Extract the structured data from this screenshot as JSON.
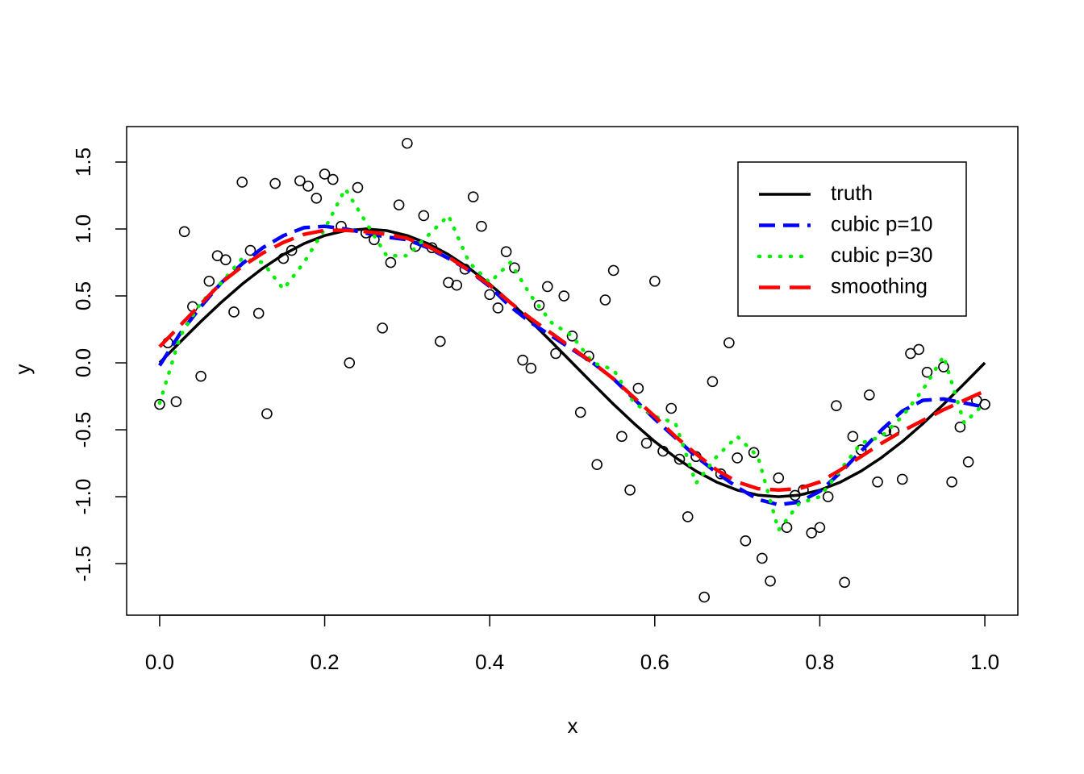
{
  "chart_data": {
    "type": "scatter",
    "xlabel": "x",
    "ylabel": "y",
    "xlim": [
      -0.04,
      1.04
    ],
    "ylim": [
      -1.885,
      1.765
    ],
    "xticks": [
      {
        "value": 0,
        "label": "0.0"
      },
      0.2,
      0.4,
      0.6,
      0.8,
      {
        "value": 1,
        "label": "1.0"
      }
    ],
    "yticks": [
      -1.5,
      {
        "value": -1,
        "label": "-1.0"
      },
      -0.5,
      {
        "value": 0,
        "label": "0.0"
      },
      0.5,
      {
        "value": 1,
        "label": "1.0"
      },
      1.5
    ],
    "legend": "topright",
    "points": {
      "color": "#000000",
      "x": [
        0,
        0.01,
        0.02,
        0.03,
        0.04,
        0.05,
        0.06,
        0.07,
        0.08,
        0.09,
        0.1,
        0.11,
        0.12,
        0.13,
        0.14,
        0.15,
        0.16,
        0.17,
        0.18,
        0.19,
        0.2,
        0.21,
        0.22,
        0.23,
        0.24,
        0.25,
        0.26,
        0.27,
        0.28,
        0.29,
        0.3,
        0.31,
        0.32,
        0.33,
        0.34,
        0.35,
        0.36,
        0.37,
        0.38,
        0.39,
        0.4,
        0.41,
        0.42,
        0.43,
        0.44,
        0.45,
        0.46,
        0.47,
        0.48,
        0.49,
        0.5,
        0.51,
        0.52,
        0.53,
        0.54,
        0.55,
        0.56,
        0.57,
        0.58,
        0.59,
        0.6,
        0.61,
        0.62,
        0.63,
        0.64,
        0.65,
        0.66,
        0.67,
        0.68,
        0.69,
        0.7,
        0.71,
        0.72,
        0.73,
        0.74,
        0.75,
        0.76,
        0.77,
        0.78,
        0.79,
        0.8,
        0.81,
        0.82,
        0.83,
        0.84,
        0.85,
        0.86,
        0.87,
        0.88,
        0.89,
        0.9,
        0.91,
        0.92,
        0.93,
        0.95,
        0.96,
        0.97,
        0.98,
        0.99,
        1.0
      ],
      "y": [
        -0.31,
        0.15,
        -0.29,
        0.98,
        0.42,
        -0.1,
        0.61,
        0.8,
        0.77,
        0.38,
        1.35,
        0.84,
        0.37,
        -0.38,
        1.34,
        0.78,
        0.84,
        1.36,
        1.32,
        1.23,
        1.41,
        1.37,
        1.02,
        0.0,
        1.31,
        0.97,
        0.92,
        0.26,
        0.75,
        1.18,
        1.64,
        0.87,
        1.1,
        0.86,
        0.16,
        0.6,
        0.58,
        0.7,
        1.24,
        1.02,
        0.51,
        0.41,
        0.83,
        0.71,
        0.02,
        -0.04,
        0.43,
        0.57,
        0.07,
        0.5,
        0.2,
        -0.37,
        0.05,
        -0.76,
        0.47,
        0.69,
        -0.55,
        -0.95,
        -0.19,
        -0.6,
        0.61,
        -0.66,
        -0.34,
        -0.72,
        -1.15,
        -0.7,
        -1.75,
        -0.14,
        -0.83,
        0.15,
        -0.71,
        -1.33,
        -0.67,
        -1.46,
        -1.63,
        -0.86,
        -1.23,
        -0.99,
        -0.95,
        -1.27,
        -1.23,
        -1.0,
        -0.32,
        -1.64,
        -0.55,
        -0.65,
        -0.24,
        -0.89,
        -0.51,
        -0.51,
        -0.87,
        0.07,
        0.1,
        -0.07,
        -0.03,
        -0.89,
        -0.48,
        -0.74,
        -0.28,
        -0.31
      ]
    },
    "lines": {
      "x": [
        0,
        0.025,
        0.05,
        0.075,
        0.1,
        0.125,
        0.15,
        0.175,
        0.2,
        0.225,
        0.25,
        0.275,
        0.3,
        0.325,
        0.35,
        0.375,
        0.4,
        0.425,
        0.45,
        0.475,
        0.5,
        0.525,
        0.55,
        0.575,
        0.6,
        0.625,
        0.65,
        0.675,
        0.7,
        0.725,
        0.75,
        0.775,
        0.8,
        0.825,
        0.85,
        0.875,
        0.9,
        0.925,
        0.95,
        0.975,
        1.0
      ],
      "series": [
        {
          "name": "truth",
          "color": "#000000",
          "dash": "solid",
          "values": [
            0,
            0.156,
            0.309,
            0.454,
            0.588,
            0.707,
            0.809,
            0.891,
            0.951,
            0.988,
            1,
            0.988,
            0.951,
            0.891,
            0.809,
            0.707,
            0.588,
            0.454,
            0.309,
            0.156,
            0,
            -0.156,
            -0.309,
            -0.454,
            -0.588,
            -0.707,
            -0.809,
            -0.891,
            -0.951,
            -0.988,
            -1,
            -0.988,
            -0.951,
            -0.891,
            -0.809,
            -0.707,
            -0.588,
            -0.454,
            -0.309,
            -0.156,
            0
          ]
        },
        {
          "name": "cubic p=10",
          "color": "#0000ff",
          "dash": "dashed",
          "values": [
            -0.02,
            0.22,
            0.42,
            0.6,
            0.74,
            0.86,
            0.95,
            1.01,
            1.02,
            1.0,
            0.97,
            0.94,
            0.92,
            0.86,
            0.78,
            0.69,
            0.57,
            0.42,
            0.3,
            0.2,
            0.1,
            0.0,
            -0.12,
            -0.27,
            -0.42,
            -0.56,
            -0.7,
            -0.82,
            -0.93,
            -1.02,
            -1.06,
            -1.04,
            -0.96,
            -0.82,
            -0.66,
            -0.5,
            -0.36,
            -0.28,
            -0.27,
            -0.3,
            -0.33
          ]
        },
        {
          "name": "cubic p=30",
          "color": "#00ee00",
          "dash": "dotted",
          "values": [
            -0.3,
            0.2,
            0.45,
            0.6,
            0.78,
            0.75,
            0.55,
            0.75,
            1.0,
            1.3,
            1.05,
            0.8,
            0.8,
            0.95,
            1.1,
            0.75,
            0.6,
            0.75,
            0.5,
            0.3,
            0.2,
            0.0,
            -0.05,
            -0.3,
            -0.4,
            -0.45,
            -0.9,
            -0.7,
            -0.55,
            -0.7,
            -1.25,
            -1.05,
            -1.0,
            -0.8,
            -0.6,
            -0.55,
            -0.4,
            -0.2,
            0.05,
            -0.45,
            -0.3
          ]
        },
        {
          "name": "smoothing",
          "color": "#ff0000",
          "dash": "longdash",
          "values": [
            0.12,
            0.28,
            0.44,
            0.6,
            0.72,
            0.82,
            0.9,
            0.96,
            0.99,
            0.99,
            0.98,
            0.96,
            0.93,
            0.87,
            0.79,
            0.69,
            0.58,
            0.45,
            0.33,
            0.22,
            0.11,
            0.0,
            -0.12,
            -0.26,
            -0.4,
            -0.55,
            -0.68,
            -0.8,
            -0.89,
            -0.94,
            -0.95,
            -0.94,
            -0.89,
            -0.8,
            -0.7,
            -0.6,
            -0.51,
            -0.43,
            -0.35,
            -0.28,
            -0.21
          ]
        }
      ]
    }
  }
}
